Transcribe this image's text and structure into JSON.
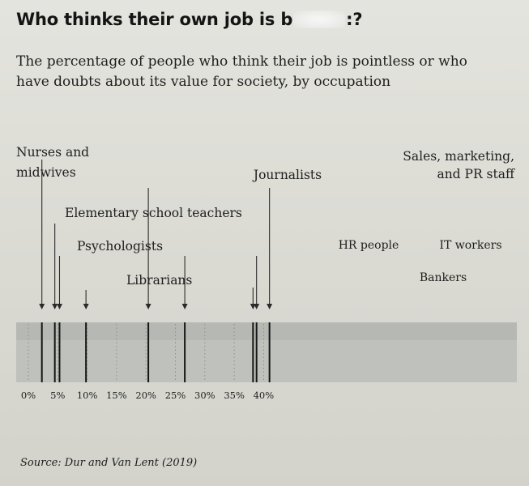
{
  "title": {
    "prefix": "Who thinks their own job is b",
    "suffix": ":?"
  },
  "subtitle": "The percentage of people who think their job is pointless or who have doubts about its value for society, by occupation",
  "source": "Source: Dur and Van Lent (2019)",
  "chart_data": {
    "type": "strip",
    "title": "",
    "xlabel": "",
    "ylabel": "",
    "xlim": [
      0,
      42
    ],
    "ticks": [
      "0%",
      "5%",
      "10%",
      "15%",
      "20%",
      "25%",
      "30%",
      "35%",
      "40%"
    ],
    "tick_values": [
      0,
      5,
      10,
      15,
      20,
      25,
      30,
      35,
      40
    ],
    "points": [
      {
        "label": "Nurses and midwives",
        "value": 2.3
      },
      {
        "label": "Elementary school teachers",
        "value": 4.5
      },
      {
        "label": "Psychologists",
        "value": 5.3
      },
      {
        "label": "Librarians",
        "value": 9.8
      },
      {
        "label": "Journalists",
        "value": 20.4
      },
      {
        "label": "HR people",
        "value": 26.6
      },
      {
        "label": "Bankers",
        "value": 38.2
      },
      {
        "label": "IT workers",
        "value": 38.8
      },
      {
        "label": "Sales, marketing, and PR staff",
        "value": 41.0
      }
    ]
  }
}
